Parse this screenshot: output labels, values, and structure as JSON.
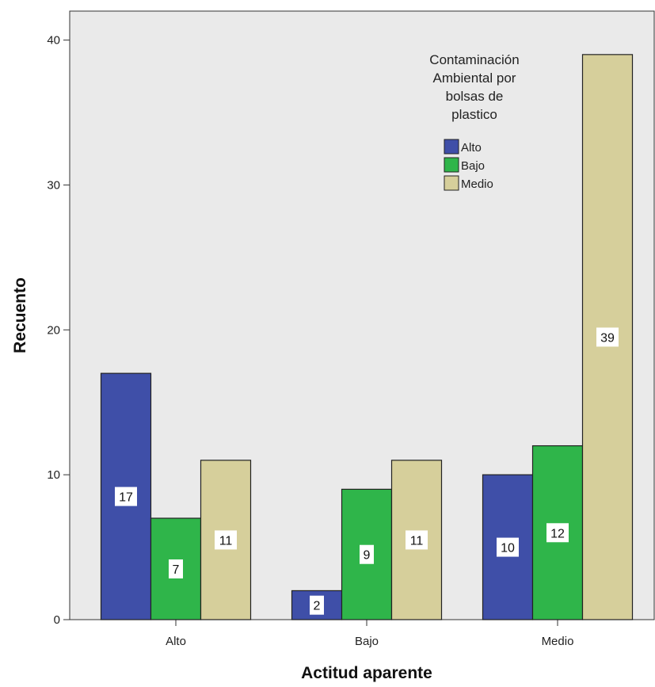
{
  "chart_data": {
    "type": "bar",
    "xlabel": "Actitud aparente",
    "ylabel": "Recuento",
    "categories": [
      "Alto",
      "Bajo",
      "Medio"
    ],
    "ylim": [
      0,
      42
    ],
    "yticks": [
      0,
      10,
      20,
      30,
      40
    ],
    "grid": false,
    "legend": {
      "title_lines": [
        "Contaminación",
        "Ambiental por",
        "bolsas de",
        "plastico"
      ],
      "position": "top-right"
    },
    "series": [
      {
        "name": "Alto",
        "color": "#3f4fa8",
        "values": [
          17,
          2,
          10
        ]
      },
      {
        "name": "Bajo",
        "color": "#2fb54a",
        "values": [
          7,
          9,
          12
        ]
      },
      {
        "name": "Medio",
        "color": "#d6cf9b",
        "values": [
          11,
          11,
          39
        ]
      }
    ],
    "colors": {
      "plot_background": "#eaeaea",
      "bar_stroke": "#222222",
      "axis": "#333333"
    }
  }
}
